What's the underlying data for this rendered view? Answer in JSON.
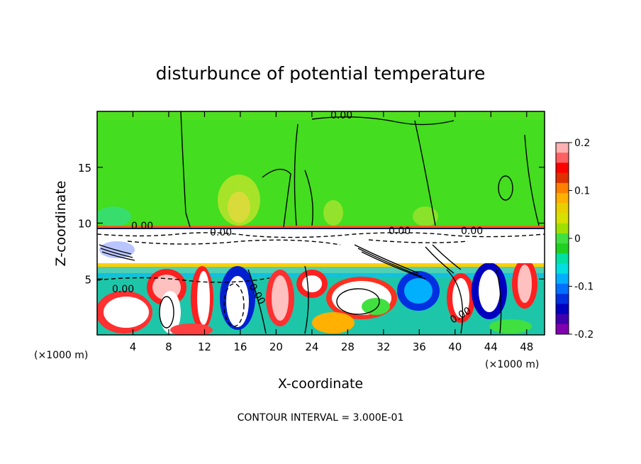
{
  "chart_data": {
    "type": "heatmap",
    "title": "disturbunce of potential temperature",
    "xlabel": "X-coordinate",
    "ylabel": "Z-coordinate",
    "x_unit_left": "(×1000 m)",
    "x_unit_right": "(×1000 m)",
    "xlim": [
      0,
      50
    ],
    "ylim": [
      0,
      20
    ],
    "x_ticks": [
      4,
      8,
      12,
      16,
      20,
      24,
      28,
      32,
      36,
      40,
      44,
      48
    ],
    "y_ticks": [
      5,
      10,
      15
    ],
    "colorbar": {
      "min": -0.2,
      "max": 0.2,
      "tick_labels": [
        "0.2",
        "0.1",
        "0",
        "-0.1",
        "-0.2"
      ],
      "tick_values": [
        0.2,
        0.1,
        0,
        -0.1,
        -0.2
      ],
      "colors": [
        "#ffb0b0",
        "#ff6060",
        "#ff0000",
        "#e03000",
        "#ff8000",
        "#ffb000",
        "#e8d000",
        "#d8e000",
        "#a0e000",
        "#40e040",
        "#20d020",
        "#00e0a0",
        "#00e0e0",
        "#00b0ff",
        "#0070ff",
        "#0030e0",
        "#0000c0",
        "#4000b0",
        "#8000b0"
      ]
    },
    "contour_labels": [
      "0.00",
      "0.00",
      "0.00",
      "0.00",
      "0.00",
      "0.00",
      "0.00",
      "0.00"
    ],
    "footer": "CONTOUR INTERVAL = 3.000E-01"
  }
}
